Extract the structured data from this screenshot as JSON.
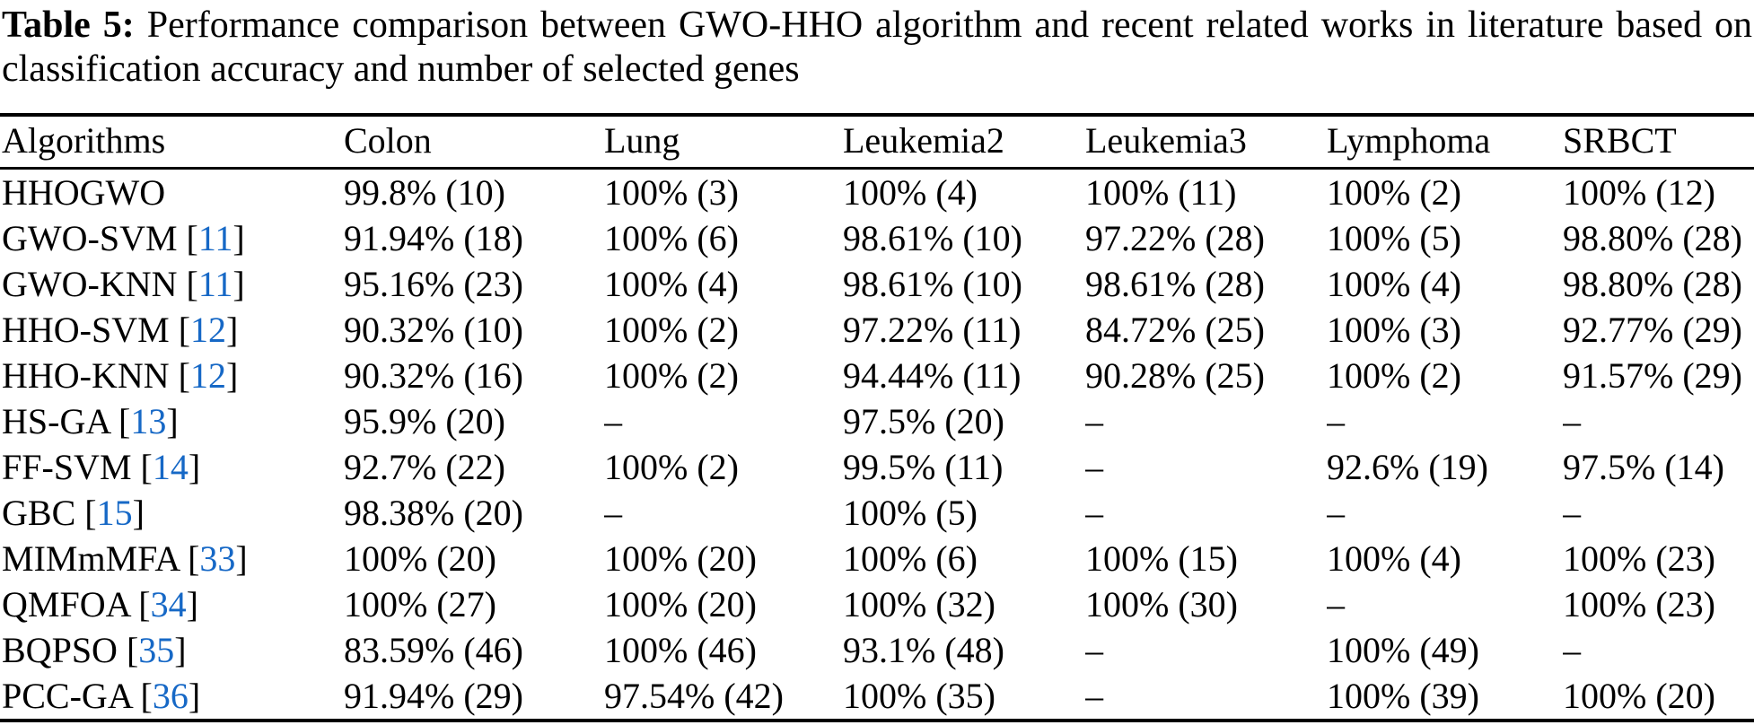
{
  "caption": {
    "label": "Table 5:",
    "text": "Performance comparison between GWO-HHO algorithm and recent related works in literature based on classification accuracy and number of selected genes"
  },
  "colors": {
    "text": "#000000",
    "background": "#FFFFFF",
    "citation": "#1668C6"
  },
  "table": {
    "citation_brackets": {
      "open": "[",
      "close": "]"
    },
    "columns": [
      "Algorithms",
      "Colon",
      "Lung",
      "Leukemia2",
      "Leukemia3",
      "Lymphoma",
      "SRBCT"
    ],
    "rows": [
      {
        "name": "HHOGWO",
        "cite": "",
        "values": [
          "99.8% (10)",
          "100% (3)",
          "100% (4)",
          "100% (11)",
          "100% (2)",
          "100% (12)"
        ]
      },
      {
        "name": "GWO-SVM",
        "cite": "11",
        "values": [
          "91.94% (18)",
          "100% (6)",
          "98.61% (10)",
          "97.22% (28)",
          "100% (5)",
          "98.80% (28)"
        ]
      },
      {
        "name": "GWO-KNN",
        "cite": "11",
        "values": [
          "95.16% (23)",
          "100% (4)",
          "98.61% (10)",
          "98.61% (28)",
          "100% (4)",
          "98.80% (28)"
        ]
      },
      {
        "name": "HHO-SVM",
        "cite": "12",
        "values": [
          "90.32% (10)",
          "100% (2)",
          "97.22% (11)",
          "84.72% (25)",
          "100% (3)",
          "92.77% (29)"
        ]
      },
      {
        "name": "HHO-KNN",
        "cite": "12",
        "values": [
          "90.32% (16)",
          "100% (2)",
          "94.44% (11)",
          "90.28% (25)",
          "100% (2)",
          "91.57% (29)"
        ]
      },
      {
        "name": "HS-GA",
        "cite": "13",
        "values": [
          "95.9% (20)",
          "–",
          "97.5% (20)",
          "–",
          "–",
          "–"
        ]
      },
      {
        "name": "FF-SVM",
        "cite": "14",
        "values": [
          "92.7% (22)",
          "100% (2)",
          "99.5% (11)",
          "–",
          "92.6% (19)",
          "97.5% (14)"
        ]
      },
      {
        "name": "GBC",
        "cite": "15",
        "values": [
          "98.38% (20)",
          "–",
          "100% (5)",
          "–",
          "–",
          "–"
        ]
      },
      {
        "name": "MIMmMFA",
        "cite": "33",
        "values": [
          "100% (20)",
          "100% (20)",
          "100% (6)",
          "100% (15)",
          "100% (4)",
          "100% (23)"
        ]
      },
      {
        "name": "QMFOA",
        "cite": "34",
        "values": [
          "100% (27)",
          "100% (20)",
          "100% (32)",
          "100% (30)",
          "–",
          "100% (23)"
        ]
      },
      {
        "name": "BQPSO",
        "cite": "35",
        "values": [
          "83.59% (46)",
          "100% (46)",
          "93.1% (48)",
          "–",
          "100% (49)",
          "–"
        ]
      },
      {
        "name": "PCC-GA",
        "cite": "36",
        "values": [
          "91.94% (29)",
          "97.54% (42)",
          "100% (35)",
          "–",
          "100% (39)",
          "100% (20)"
        ]
      }
    ]
  }
}
